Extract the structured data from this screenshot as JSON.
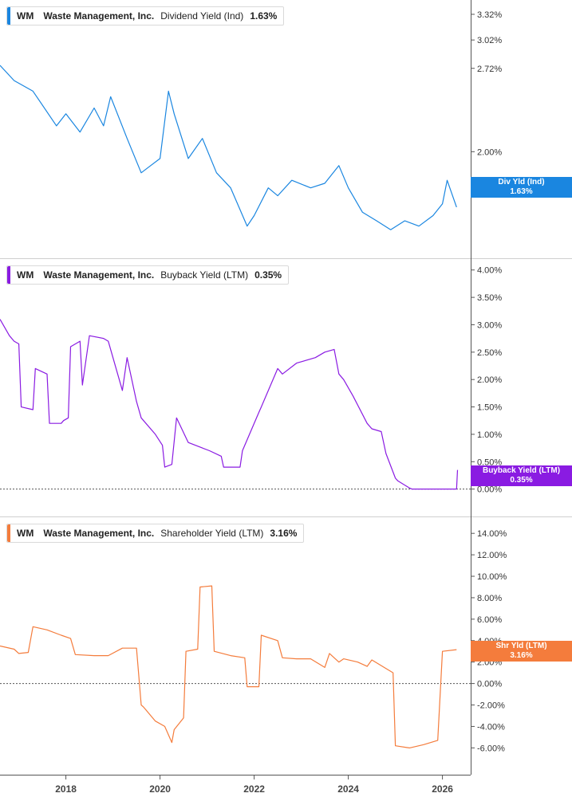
{
  "chart_data": [
    {
      "type": "line",
      "ticker": "WM",
      "company": "Waste Management, Inc.",
      "metric": "Dividend Yield (Ind)",
      "current_value": "1.63%",
      "end_label_title": "Div Yld (Ind)",
      "end_label_value": "1.63%",
      "color": "#1a86e0",
      "y_scale": "log",
      "ylim": [
        1.35,
        3.5
      ],
      "y_ticks": [
        2.0,
        2.72,
        3.02,
        3.32
      ],
      "y_tick_labels": [
        "2.00%",
        "2.72%",
        "3.02%",
        "3.32%"
      ],
      "zero_line": false,
      "x": [
        2016.6,
        2016.9,
        2017.3,
        2017.8,
        2018.0,
        2018.3,
        2018.6,
        2018.8,
        2018.95,
        2019.3,
        2019.6,
        2019.8,
        2020.0,
        2020.18,
        2020.3,
        2020.6,
        2020.9,
        2021.2,
        2021.5,
        2021.85,
        2022.0,
        2022.3,
        2022.5,
        2022.8,
        2023.2,
        2023.5,
        2023.8,
        2024.0,
        2024.3,
        2024.6,
        2024.9,
        2025.2,
        2025.5,
        2025.8,
        2026.0,
        2026.1,
        2026.3
      ],
      "values": [
        2.75,
        2.6,
        2.5,
        2.2,
        2.3,
        2.15,
        2.35,
        2.2,
        2.45,
        2.1,
        1.85,
        1.9,
        1.95,
        2.5,
        2.3,
        1.95,
        2.1,
        1.85,
        1.75,
        1.52,
        1.58,
        1.75,
        1.7,
        1.8,
        1.75,
        1.78,
        1.9,
        1.75,
        1.6,
        1.55,
        1.5,
        1.55,
        1.52,
        1.58,
        1.65,
        1.8,
        1.63
      ]
    },
    {
      "type": "line",
      "ticker": "WM",
      "company": "Waste Management, Inc.",
      "metric": "Buyback Yield (LTM)",
      "current_value": "0.35%",
      "end_label_title": "Buyback Yield (LTM)",
      "end_label_value": "0.35%",
      "color": "#8a1be2",
      "y_scale": "linear",
      "ylim": [
        -0.5,
        4.2
      ],
      "y_ticks": [
        0.0,
        0.5,
        1.0,
        1.5,
        2.0,
        2.5,
        3.0,
        3.5,
        4.0
      ],
      "y_tick_labels": [
        "0.00%",
        "0.50%",
        "1.00%",
        "1.50%",
        "2.00%",
        "2.50%",
        "3.00%",
        "3.50%",
        "4.00%"
      ],
      "zero_line": true,
      "x": [
        2016.6,
        2016.8,
        2016.9,
        2017.0,
        2017.05,
        2017.3,
        2017.35,
        2017.6,
        2017.65,
        2017.9,
        2017.95,
        2018.05,
        2018.1,
        2018.3,
        2018.35,
        2018.5,
        2018.8,
        2018.9,
        2019.2,
        2019.3,
        2019.5,
        2019.6,
        2019.9,
        2020.05,
        2020.1,
        2020.25,
        2020.35,
        2020.6,
        2020.9,
        2021.05,
        2021.3,
        2021.35,
        2021.7,
        2021.75,
        2022.1,
        2022.15,
        2022.5,
        2022.6,
        2022.9,
        2023.3,
        2023.5,
        2023.7,
        2023.8,
        2023.9,
        2024.1,
        2024.4,
        2024.5,
        2024.7,
        2024.8,
        2025.0,
        2025.05,
        2025.3,
        2025.35,
        2026.0,
        2026.3,
        2026.32
      ],
      "values": [
        3.1,
        2.8,
        2.7,
        2.65,
        1.5,
        1.45,
        2.2,
        2.1,
        1.2,
        1.2,
        1.25,
        1.3,
        2.6,
        2.7,
        1.9,
        2.8,
        2.75,
        2.7,
        1.8,
        2.4,
        1.6,
        1.3,
        1.0,
        0.8,
        0.4,
        0.45,
        1.3,
        0.85,
        0.75,
        0.7,
        0.6,
        0.4,
        0.4,
        0.7,
        1.4,
        1.5,
        2.2,
        2.1,
        2.3,
        2.4,
        2.5,
        2.55,
        2.1,
        2.0,
        1.7,
        1.2,
        1.1,
        1.05,
        0.65,
        0.2,
        0.15,
        0.02,
        0.0,
        0.0,
        0.0,
        0.35
      ]
    },
    {
      "type": "line",
      "ticker": "WM",
      "company": "Waste Management, Inc.",
      "metric": "Shareholder Yield (LTM)",
      "current_value": "3.16%",
      "end_label_title": "Shr Yld (LTM)",
      "end_label_value": "3.16%",
      "color": "#f47c3c",
      "y_scale": "linear",
      "ylim": [
        -8.5,
        15.5
      ],
      "y_ticks": [
        -6.0,
        -4.0,
        -2.0,
        0.0,
        2.0,
        4.0,
        6.0,
        8.0,
        10.0,
        12.0,
        14.0
      ],
      "y_tick_labels": [
        "-6.00%",
        "-4.00%",
        "-2.00%",
        "0.00%",
        "2.00%",
        "4.00%",
        "6.00%",
        "8.00%",
        "10.00%",
        "12.00%",
        "14.00%"
      ],
      "zero_line": true,
      "x": [
        2016.6,
        2016.9,
        2017.0,
        2017.2,
        2017.3,
        2017.6,
        2017.9,
        2018.1,
        2018.2,
        2018.6,
        2018.9,
        2019.2,
        2019.5,
        2019.6,
        2019.65,
        2019.9,
        2020.1,
        2020.25,
        2020.3,
        2020.5,
        2020.55,
        2020.8,
        2020.85,
        2021.1,
        2021.15,
        2021.5,
        2021.8,
        2021.85,
        2022.1,
        2022.15,
        2022.5,
        2022.6,
        2022.9,
        2023.2,
        2023.5,
        2023.6,
        2023.8,
        2023.9,
        2024.2,
        2024.4,
        2024.5,
        2024.8,
        2024.95,
        2025.0,
        2025.3,
        2025.6,
        2025.9,
        2026.0,
        2026.3
      ],
      "values": [
        3.5,
        3.2,
        2.8,
        2.9,
        5.3,
        5.0,
        4.5,
        4.2,
        2.7,
        2.6,
        2.6,
        3.3,
        3.3,
        -2.0,
        -2.2,
        -3.5,
        -4.0,
        -5.5,
        -4.3,
        -3.2,
        3.0,
        3.2,
        9.0,
        9.1,
        3.0,
        2.6,
        2.4,
        -0.3,
        -0.3,
        4.5,
        4.0,
        2.4,
        2.3,
        2.3,
        1.5,
        2.8,
        2.0,
        2.3,
        2.0,
        1.6,
        2.2,
        1.4,
        1.0,
        -5.8,
        -6.0,
        -5.7,
        -5.3,
        3.0,
        3.16
      ]
    }
  ],
  "x_axis": {
    "ticks": [
      2018,
      2020,
      2022,
      2024,
      2026
    ],
    "labels": [
      "2018",
      "2020",
      "2022",
      "2024",
      "2026"
    ],
    "xlim": [
      2016.6,
      2026.6
    ]
  }
}
